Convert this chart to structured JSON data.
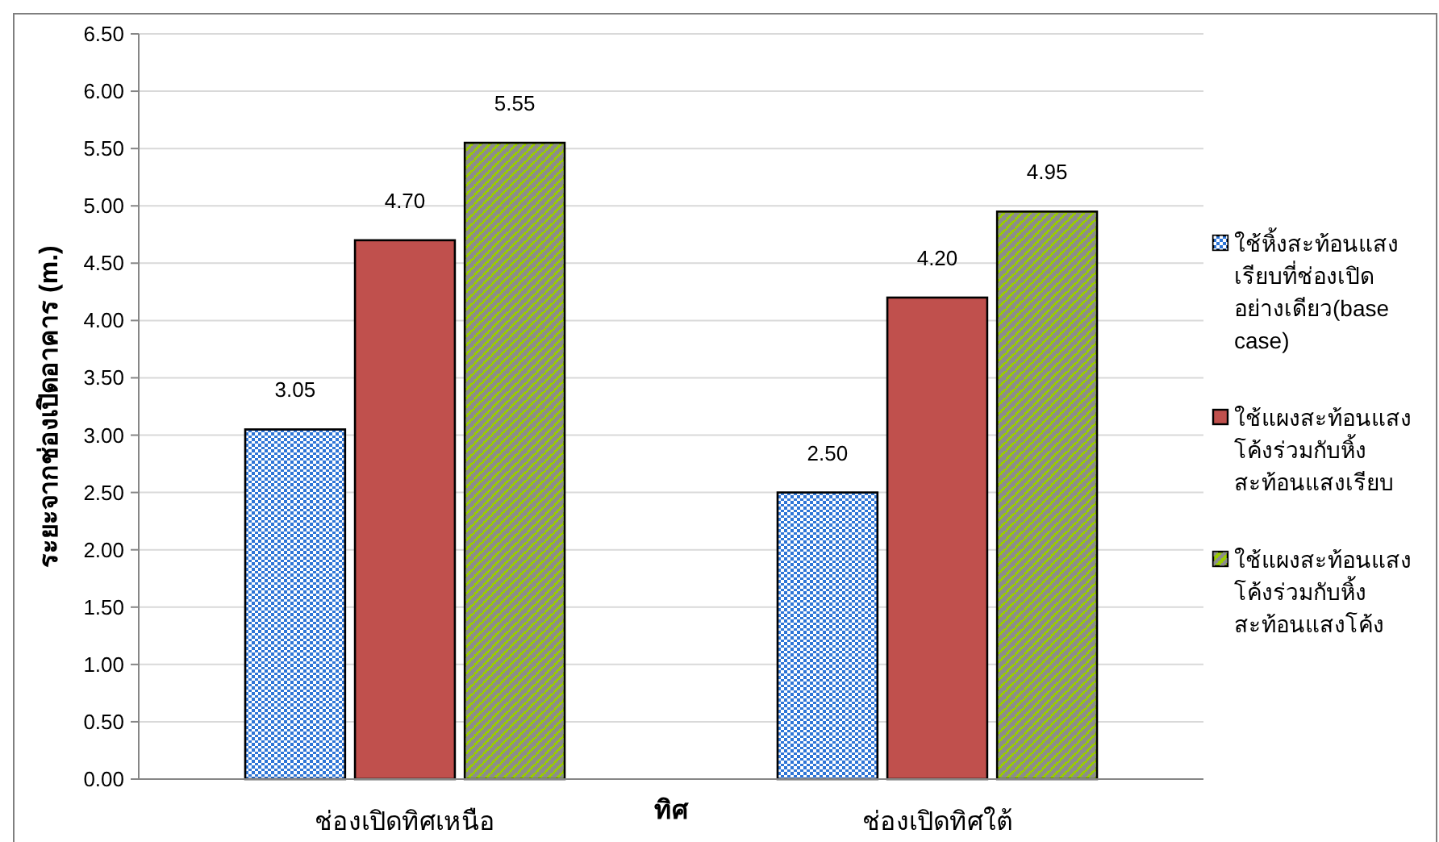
{
  "chart_data": {
    "type": "bar",
    "xlabel": "ทิศ",
    "ylabel": "ระยะจากช่องเปิดอาคาร (m.)",
    "categories": [
      "ช่องเปิดทิศเหนือ",
      "ช่องเปิดทิศใต้"
    ],
    "series": [
      {
        "name": "ใช้หิ้งสะท้อนแสงเรียบที่ช่องเปิดอย่างเดียว(base case)",
        "color": "#2f75d6",
        "values": [
          3.05,
          2.5
        ],
        "value_labels": [
          "3.05",
          "2.50"
        ]
      },
      {
        "name": "ใช้แผงสะท้อนแสงโค้งร่วมกับหิ้งสะท้อนแสงเรียบ",
        "color": "#c0504d",
        "values": [
          4.7,
          4.2
        ],
        "value_labels": [
          "4.70",
          "4.20"
        ]
      },
      {
        "name": "ใช้แผงสะท้อนแสงโค้งร่วมกับหิ้งสะท้อนแสงโค้ง",
        "color": "#99cc00",
        "values": [
          5.55,
          4.95
        ],
        "value_labels": [
          "5.55",
          "4.95"
        ]
      }
    ],
    "ylim": [
      0,
      6.5
    ],
    "yticks": [
      {
        "value": 0,
        "label": "0.00"
      },
      {
        "value": 0.5,
        "label": "0.50"
      },
      {
        "value": 1,
        "label": "1.00"
      },
      {
        "value": 1.5,
        "label": "1.50"
      },
      {
        "value": 2,
        "label": "2.00"
      },
      {
        "value": 2.5,
        "label": "2.50"
      },
      {
        "value": 3,
        "label": "3.00"
      },
      {
        "value": 3.5,
        "label": "3.50"
      },
      {
        "value": 4,
        "label": "4.00"
      },
      {
        "value": 4.5,
        "label": "4.50"
      },
      {
        "value": 5,
        "label": "5.00"
      },
      {
        "value": 5.5,
        "label": "5.50"
      },
      {
        "value": 6,
        "label": "6.00"
      },
      {
        "value": 6.5,
        "label": "6.50"
      }
    ],
    "grid": "y",
    "legend": "right"
  }
}
